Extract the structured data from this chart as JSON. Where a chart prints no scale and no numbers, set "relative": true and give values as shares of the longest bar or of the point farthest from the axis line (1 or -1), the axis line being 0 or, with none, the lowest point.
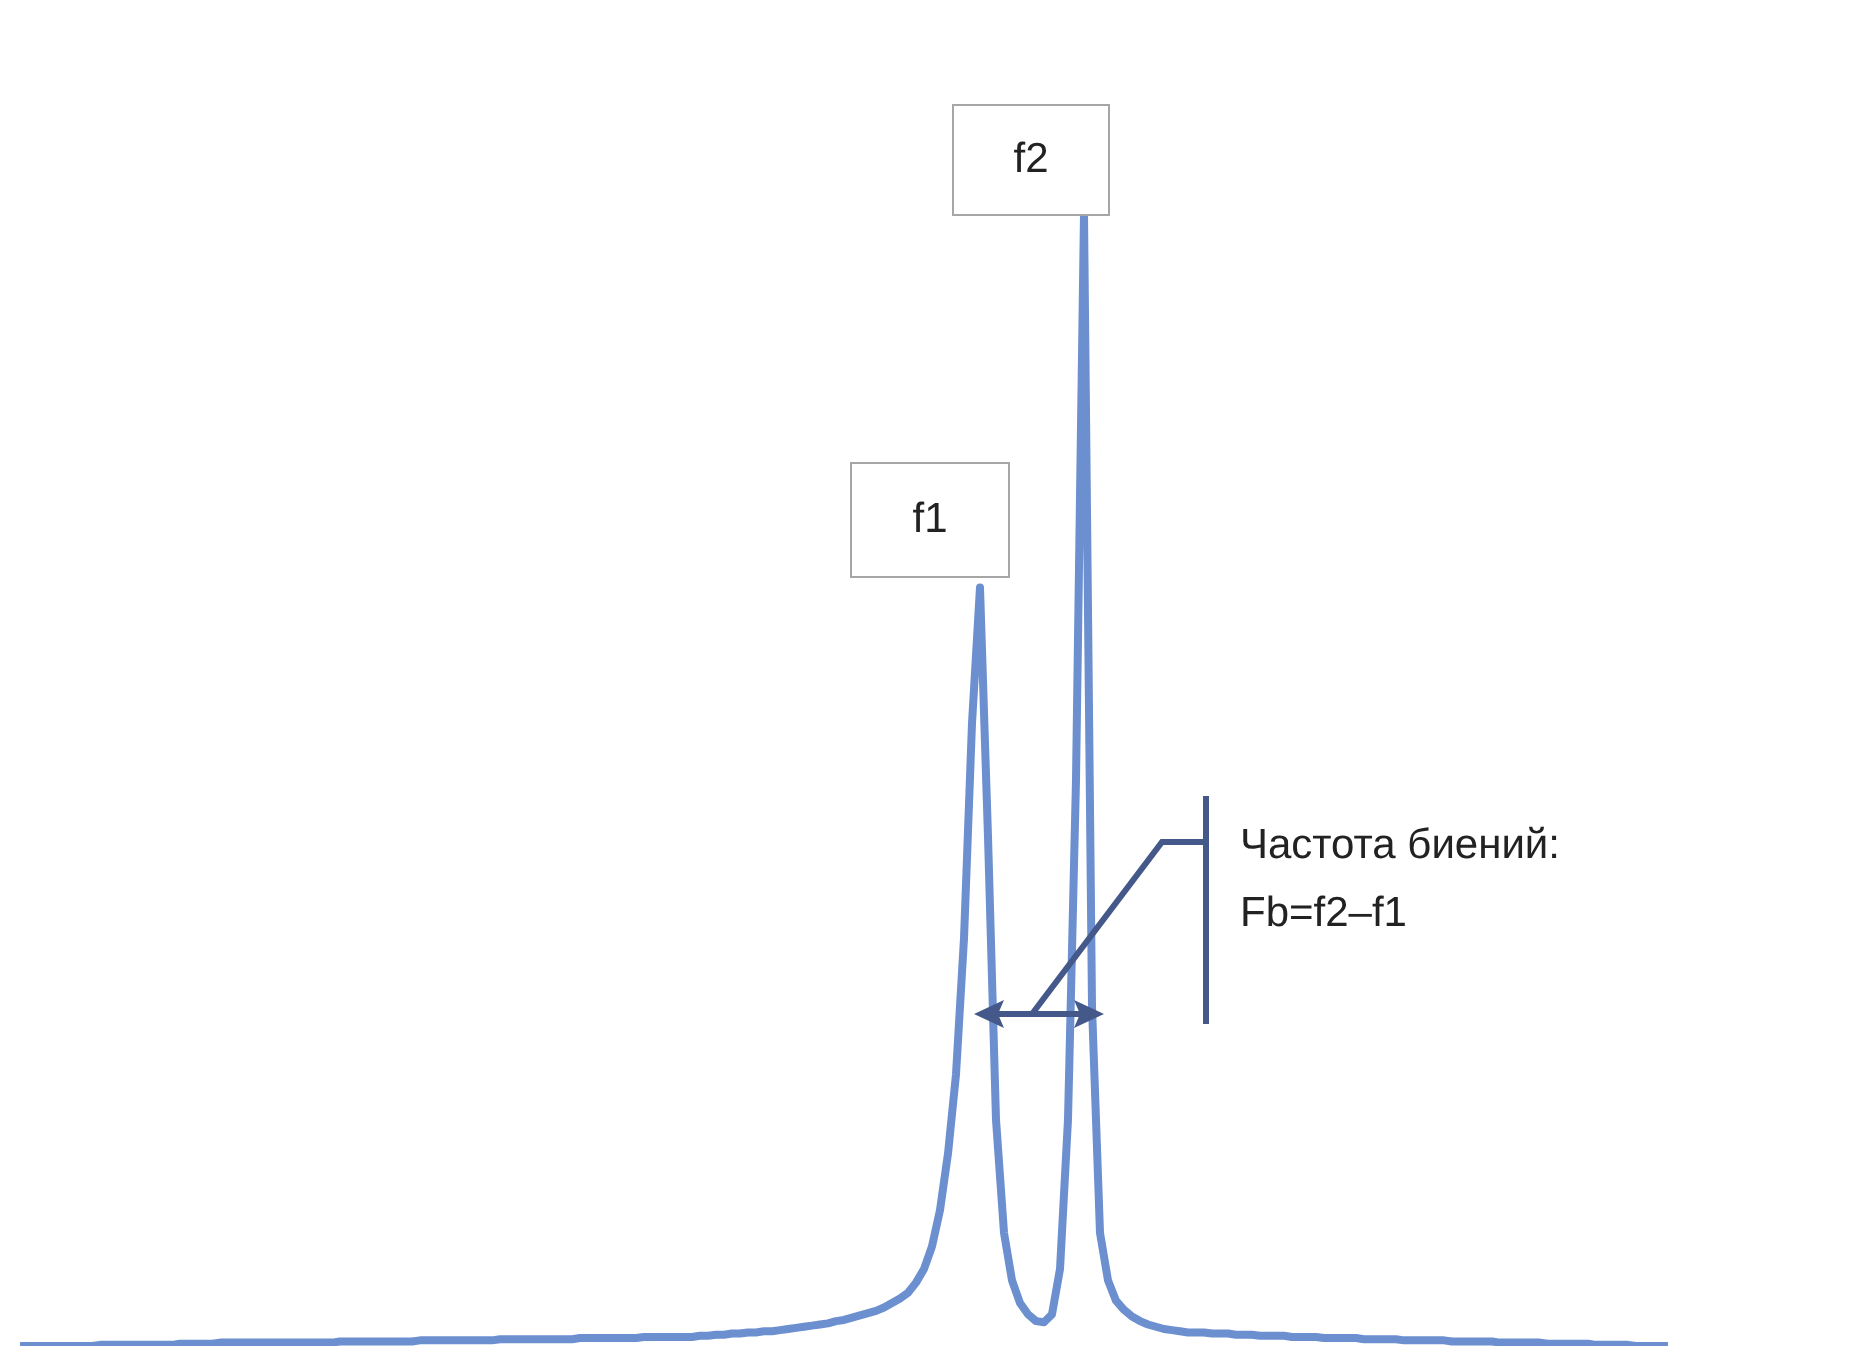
{
  "chart_data": {
    "type": "line",
    "relative": true,
    "color": "#6b8fcf",
    "annotations": [
      "f1",
      "f2",
      "Частота биений:\nFb=f2–f1"
    ],
    "categories": [
      null,
      null,
      null,
      null,
      null,
      null,
      null,
      null,
      null,
      null,
      null,
      null,
      null,
      null,
      null,
      null,
      null,
      null,
      null,
      null,
      null,
      null,
      null,
      null,
      null,
      null,
      null,
      null,
      null,
      null,
      null,
      null,
      null,
      null,
      null,
      null,
      null,
      null,
      null,
      null,
      null,
      null,
      null,
      null,
      null,
      null,
      null,
      null,
      null,
      null,
      null,
      null,
      null,
      null,
      null,
      null,
      null,
      null,
      null,
      null,
      null,
      null,
      null,
      null,
      null,
      null,
      null,
      null,
      null,
      null,
      null,
      null,
      null,
      null,
      null,
      null,
      null,
      null,
      null,
      null,
      null,
      null,
      null,
      null,
      null,
      null,
      null,
      null,
      null,
      null,
      null,
      null,
      null,
      null,
      null,
      null,
      null,
      null,
      null,
      null,
      null,
      null,
      null,
      null,
      null,
      null,
      null,
      null,
      null,
      null,
      null,
      null,
      null,
      null,
      null,
      null,
      null,
      null,
      null,
      null,
      null,
      null,
      null,
      null,
      null,
      null,
      null,
      null,
      null,
      null,
      null,
      null,
      null,
      null,
      null,
      null,
      null,
      null,
      null,
      null,
      null,
      null,
      null,
      null,
      null,
      null,
      null,
      null,
      null,
      null,
      null,
      null,
      null,
      null,
      null,
      null,
      null,
      null,
      null,
      null,
      null,
      null,
      null,
      null,
      null,
      null,
      null,
      null,
      null,
      null,
      null,
      null,
      null,
      null,
      null,
      null,
      null,
      null,
      null,
      null,
      null,
      null,
      null,
      null,
      null,
      null,
      null,
      null,
      null,
      null,
      null,
      null,
      null,
      null,
      null,
      null,
      null,
      null,
      null,
      null,
      null,
      null,
      null,
      null,
      null,
      null,
      null
    ],
    "values": [
      0,
      0,
      0,
      0,
      0,
      0,
      0,
      0,
      0,
      0,
      0.001,
      0.001,
      0.001,
      0.001,
      0.001,
      0.001,
      0.001,
      0.001,
      0.001,
      0.001,
      0.002,
      0.002,
      0.002,
      0.002,
      0.002,
      0.003,
      0.003,
      0.003,
      0.003,
      0.003,
      0.003,
      0.003,
      0.003,
      0.003,
      0.003,
      0.003,
      0.003,
      0.003,
      0.003,
      0.003,
      0.004,
      0.004,
      0.004,
      0.004,
      0.004,
      0.004,
      0.004,
      0.004,
      0.004,
      0.004,
      0.005,
      0.005,
      0.005,
      0.005,
      0.005,
      0.005,
      0.005,
      0.005,
      0.005,
      0.005,
      0.006,
      0.006,
      0.006,
      0.006,
      0.006,
      0.006,
      0.006,
      0.006,
      0.006,
      0.006,
      0.007,
      0.007,
      0.007,
      0.007,
      0.007,
      0.007,
      0.007,
      0.007,
      0.008,
      0.008,
      0.008,
      0.008,
      0.008,
      0.008,
      0.008,
      0.009,
      0.009,
      0.01,
      0.01,
      0.011,
      0.011,
      0.012,
      0.012,
      0.013,
      0.013,
      0.014,
      0.015,
      0.016,
      0.017,
      0.018,
      0.019,
      0.02,
      0.022,
      0.023,
      0.025,
      0.027,
      0.029,
      0.031,
      0.034,
      0.038,
      0.042,
      0.047,
      0.056,
      0.068,
      0.088,
      0.12,
      0.17,
      0.24,
      0.36,
      0.55,
      0.67,
      0.45,
      0.2,
      0.1,
      0.058,
      0.038,
      0.028,
      0.022,
      0.021,
      0.028,
      0.068,
      0.2,
      0.5,
      1,
      0.3,
      0.1,
      0.058,
      0.04,
      0.032,
      0.026,
      0.022,
      0.019,
      0.017,
      0.015,
      0.014,
      0.013,
      0.012,
      0.012,
      0.012,
      0.011,
      0.011,
      0.011,
      0.01,
      0.01,
      0.01,
      0.009,
      0.009,
      0.009,
      0.009,
      0.008,
      0.008,
      0.008,
      0.008,
      0.007,
      0.007,
      0.007,
      0.007,
      0.007,
      0.006,
      0.006,
      0.006,
      0.006,
      0.006,
      0.005,
      0.005,
      0.005,
      0.005,
      0.005,
      0.005,
      0.004,
      0.004,
      0.004,
      0.004,
      0.004,
      0.004,
      0.003,
      0.003,
      0.003,
      0.003,
      0.003,
      0.003,
      0.002,
      0.002,
      0.002,
      0.002,
      0.002,
      0.002,
      0.001,
      0.001,
      0.001,
      0.001,
      0.001,
      0,
      0,
      0,
      0,
      0
    ]
  }
}
